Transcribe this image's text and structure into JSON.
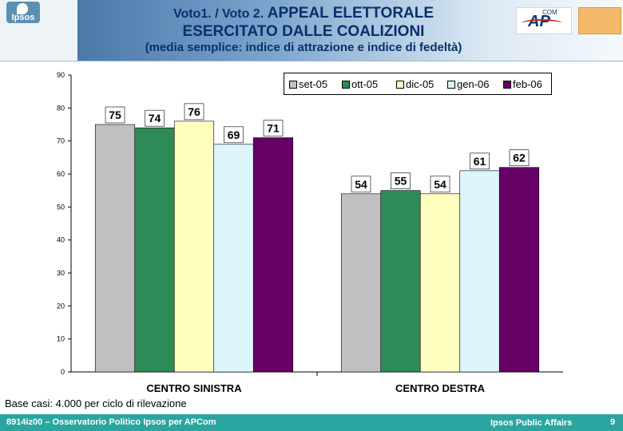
{
  "header": {
    "logo_text": "Ipsos",
    "title_prefix": "Voto1. / Voto 2.",
    "title_line1": "APPEAL ELETTORALE",
    "title_line2": "ESERCITATO DALLE COALIZIONI",
    "subtitle": "(media semplice: indice di attrazione e indice di fedeltà)",
    "apcom_logo": "AP",
    "apcom_sup": "COM"
  },
  "chart_data": {
    "type": "bar",
    "categories": [
      "CENTRO SINISTRA",
      "CENTRO DESTRA"
    ],
    "series": [
      {
        "name": "set-05",
        "color": "#c0c0c0",
        "values": [
          75,
          54
        ]
      },
      {
        "name": "ott-05",
        "color": "#2e8b57",
        "values": [
          74,
          55
        ]
      },
      {
        "name": "dic-05",
        "color": "#ffffc0",
        "values": [
          76,
          54
        ]
      },
      {
        "name": "gen-06",
        "color": "#ddf6fc",
        "values": [
          69,
          61
        ]
      },
      {
        "name": "feb-06",
        "color": "#660066",
        "values": [
          71,
          62
        ]
      }
    ],
    "ylim": [
      0,
      90
    ],
    "yticks": [
      "0",
      "10",
      "20",
      "30",
      "40",
      "50",
      "60",
      "70",
      "80",
      "90"
    ],
    "legend_position": "top-right",
    "grid": false
  },
  "note": "Base casi: 4.000 per ciclo di rilevazione",
  "footer": {
    "left": "8914iz00 – Osservatorio Politico Ipsos per APCom",
    "right": "Ipsos Public Affairs",
    "page": "9"
  }
}
